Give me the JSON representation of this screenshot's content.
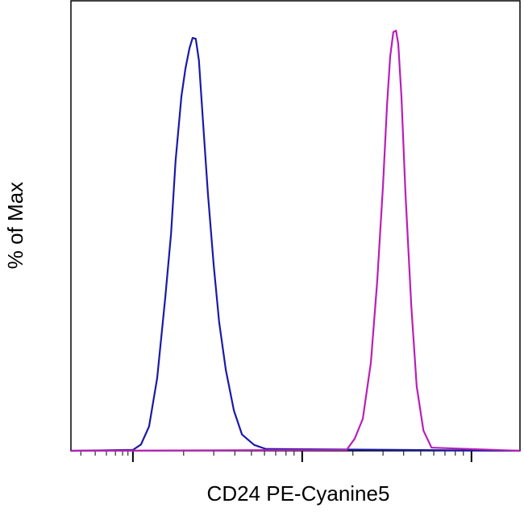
{
  "chart_data": {
    "type": "line",
    "x_label": "CD24 PE-Cyanine5",
    "y_label": "% of Max",
    "xlim": [
      0,
      1000
    ],
    "ylim": [
      0,
      100
    ],
    "xticks": [
      138,
      515,
      892
    ],
    "xminorticks": [
      22,
      54,
      79,
      99,
      115,
      127,
      251,
      318,
      365,
      402,
      431,
      456,
      479,
      497,
      628,
      695,
      741,
      779,
      808,
      833,
      856,
      874
    ],
    "series": [
      {
        "color": "#1a1aa6",
        "x": [
          0,
          138,
          156,
          174,
          192,
          210,
          223,
          233,
          246,
          255,
          264,
          271,
          278,
          285,
          294,
          305,
          318,
          330,
          345,
          363,
          381,
          408,
          434,
          1000
        ],
        "values": [
          0,
          0.2,
          1.4,
          5.4,
          16.1,
          33.9,
          48.2,
          64.3,
          78.6,
          84.8,
          89.3,
          91.6,
          91.4,
          86.6,
          73.2,
          57.1,
          41.1,
          28.6,
          17.9,
          8.9,
          3.6,
          1.3,
          0.4,
          0
        ]
      },
      {
        "color": "#b81fb8",
        "x": [
          0,
          614,
          632,
          650,
          668,
          682,
          695,
          704,
          711,
          718,
          724,
          729,
          736,
          745,
          758,
          770,
          785,
          803,
          1000
        ],
        "values": [
          0,
          0.2,
          2.7,
          7.1,
          19.6,
          37.5,
          58.9,
          76.8,
          87.5,
          92.9,
          93.2,
          90.2,
          78.6,
          57.1,
          32.1,
          14.3,
          4.5,
          0.7,
          0
        ]
      }
    ]
  }
}
